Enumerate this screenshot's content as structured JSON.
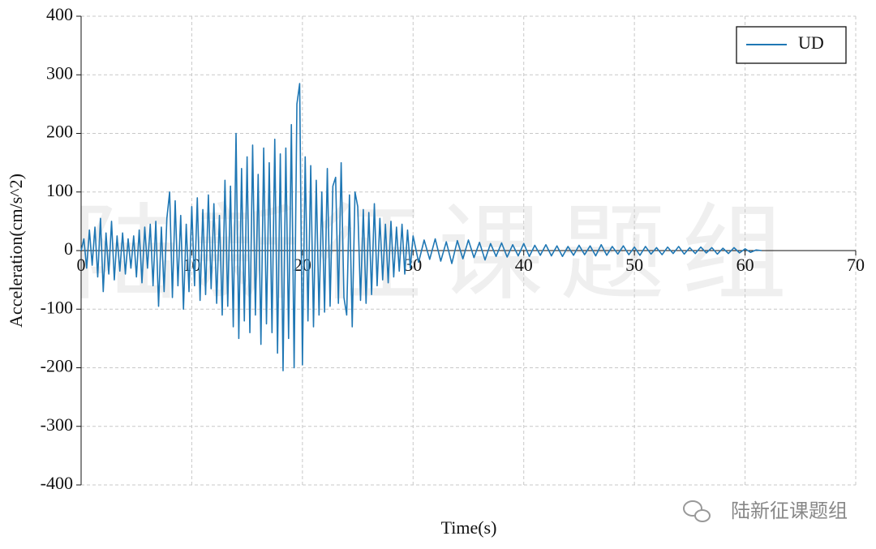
{
  "chart_data": {
    "type": "line",
    "xlabel": "Time(s)",
    "ylabel": "Acceleration(cm/s^2)",
    "watermark": "陆新征课题组",
    "credit": "陆新征课题组",
    "xlim": [
      0,
      70
    ],
    "xticks": [
      0,
      10,
      20,
      30,
      40,
      50,
      60,
      70
    ],
    "ylim": [
      -400,
      400
    ],
    "yticks": [
      -400,
      -300,
      -200,
      -100,
      0,
      100,
      200,
      300,
      400
    ],
    "grid": true,
    "legend": "upper right",
    "x": [
      0,
      0.25,
      0.5,
      0.75,
      1,
      1.25,
      1.5,
      1.75,
      2,
      2.25,
      2.5,
      2.75,
      3,
      3.25,
      3.5,
      3.75,
      4,
      4.25,
      4.5,
      4.75,
      5,
      5.25,
      5.5,
      5.75,
      6,
      6.25,
      6.5,
      6.75,
      7,
      7.25,
      7.5,
      7.75,
      8,
      8.25,
      8.5,
      8.75,
      9,
      9.25,
      9.5,
      9.75,
      10,
      10.25,
      10.5,
      10.75,
      11,
      11.25,
      11.5,
      11.75,
      12,
      12.25,
      12.5,
      12.75,
      13,
      13.25,
      13.5,
      13.75,
      14,
      14.25,
      14.5,
      14.75,
      15,
      15.25,
      15.5,
      15.75,
      16,
      16.25,
      16.5,
      16.75,
      17,
      17.25,
      17.5,
      17.75,
      18,
      18.25,
      18.5,
      18.75,
      19,
      19.25,
      19.5,
      19.75,
      20,
      20.25,
      20.5,
      20.75,
      21,
      21.25,
      21.5,
      21.75,
      22,
      22.25,
      22.5,
      22.75,
      23,
      23.25,
      23.5,
      23.75,
      24,
      24.25,
      24.5,
      24.75,
      25,
      25.25,
      25.5,
      25.75,
      26,
      26.25,
      26.5,
      26.75,
      27,
      27.25,
      27.5,
      27.75,
      28,
      28.25,
      28.5,
      28.75,
      29,
      29.25,
      29.5,
      29.75,
      30,
      30.5,
      31,
      31.5,
      32,
      32.5,
      33,
      33.5,
      34,
      34.5,
      35,
      35.5,
      36,
      36.5,
      37,
      37.5,
      38,
      38.5,
      39,
      39.5,
      40,
      40.5,
      41,
      41.5,
      42,
      42.5,
      43,
      43.5,
      44,
      44.5,
      45,
      45.5,
      46,
      46.5,
      47,
      47.5,
      48,
      48.5,
      49,
      49.5,
      50,
      50.5,
      51,
      51.5,
      52,
      52.5,
      53,
      53.5,
      54,
      54.5,
      55,
      55.5,
      56,
      56.5,
      57,
      57.5,
      58,
      58.5,
      59,
      59.5,
      60,
      60.5,
      61,
      61.5
    ],
    "series": [
      {
        "name": "UD",
        "color": "#1f77b4",
        "values": [
          0,
          20,
          -30,
          35,
          -25,
          40,
          -45,
          55,
          -70,
          30,
          -40,
          50,
          -50,
          25,
          -35,
          30,
          -40,
          20,
          -30,
          25,
          -45,
          35,
          -55,
          40,
          -30,
          45,
          -60,
          50,
          -95,
          40,
          -70,
          55,
          100,
          -80,
          85,
          -60,
          60,
          -100,
          45,
          -70,
          75,
          -60,
          90,
          -85,
          70,
          -75,
          95,
          -65,
          80,
          -90,
          60,
          -110,
          120,
          -95,
          110,
          -130,
          200,
          -150,
          140,
          -120,
          160,
          -140,
          180,
          -110,
          130,
          -160,
          175,
          -125,
          150,
          -140,
          190,
          -175,
          165,
          -205,
          175,
          -150,
          215,
          -200,
          250,
          285,
          -195,
          160,
          -120,
          145,
          -130,
          120,
          -110,
          100,
          -105,
          140,
          -95,
          110,
          125,
          -90,
          150,
          -80,
          -110,
          95,
          -130,
          100,
          75,
          -85,
          70,
          -90,
          65,
          -75,
          80,
          -60,
          55,
          -50,
          45,
          -55,
          50,
          -45,
          40,
          -35,
          45,
          -40,
          35,
          -30,
          25,
          -20,
          18,
          -15,
          20,
          -18,
          15,
          -22,
          17,
          -14,
          18,
          -12,
          14,
          -16,
          12,
          -10,
          13,
          -11,
          10,
          -9,
          12,
          -10,
          9,
          -8,
          10,
          -9,
          8,
          -10,
          7,
          -8,
          9,
          -7,
          8,
          -9,
          10,
          -8,
          7,
          -6,
          8,
          -7,
          6,
          -8,
          7,
          -6,
          5,
          -7,
          6,
          -5,
          7,
          -6,
          5,
          -5,
          6,
          -4,
          5,
          -6,
          4,
          -5,
          5,
          -4,
          3,
          -3,
          1,
          0
        ]
      }
    ]
  }
}
